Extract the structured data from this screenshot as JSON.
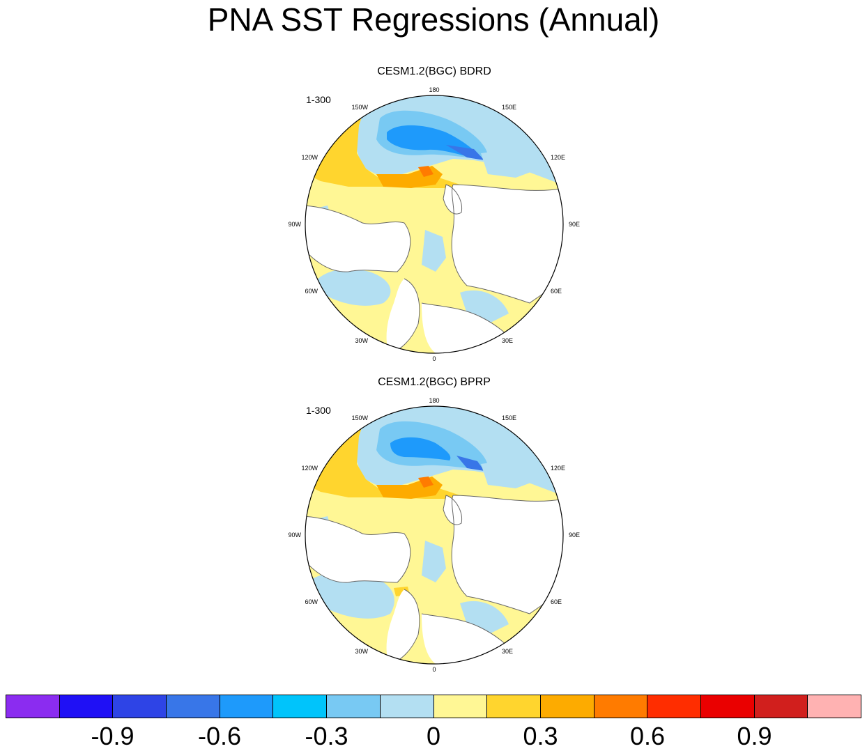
{
  "title": "PNA SST Regressions (Annual)",
  "panels": [
    {
      "title": "CESM1.2(BGC) BDRD",
      "years": "1-300",
      "longitude_labels": [
        "180",
        "150E",
        "120E",
        "90E",
        "60E",
        "30E",
        "0",
        "30W",
        "60W",
        "90W",
        "120W",
        "150W"
      ]
    },
    {
      "title": "CESM1.2(BGC) BPRP",
      "years": "1-300",
      "longitude_labels": [
        "180",
        "150E",
        "120E",
        "90E",
        "60E",
        "30E",
        "0",
        "30W",
        "60W",
        "90W",
        "120W",
        "150W"
      ]
    }
  ],
  "colorbar": {
    "colors": [
      "#8b2cf0",
      "#1f10f5",
      "#2e44e6",
      "#3876e8",
      "#1e9afb",
      "#00c4fb",
      "#78c9f3",
      "#b3dff2",
      "#fff795",
      "#ffd52e",
      "#fdab00",
      "#ff7b00",
      "#ff2d00",
      "#ea0000",
      "#d11f1d",
      "#ffb2b2"
    ],
    "labels": [
      "-0.9",
      "-0.6",
      "-0.3",
      "0",
      "0.3",
      "0.6",
      "0.9"
    ]
  }
}
